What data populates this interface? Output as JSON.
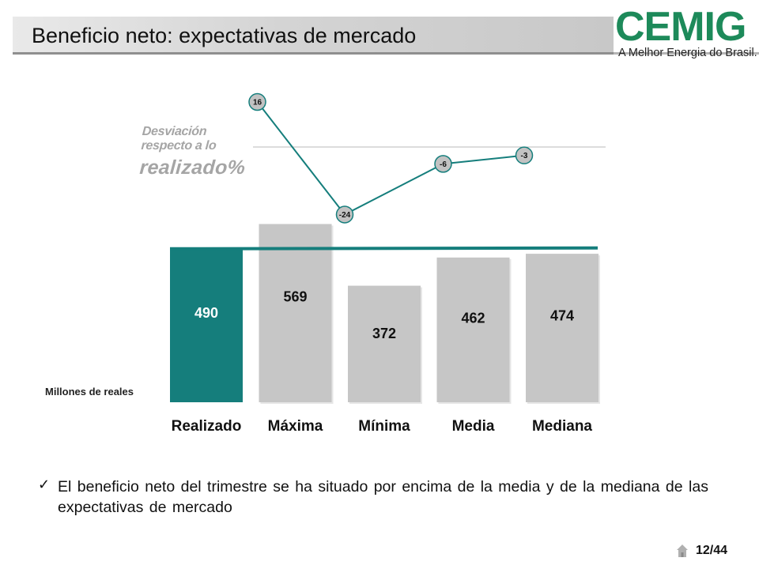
{
  "header": {
    "title": "Beneficio neto: expectativas de mercado",
    "logo_text": "CEMIG",
    "logo_tagline": "A Melhor Energia do Brasil."
  },
  "colors": {
    "accent_teal": "#157e7c",
    "bar_gray": "#c6c6c6",
    "label_gray": "#a5a5a5",
    "brand_green": "#1d8a5a"
  },
  "chart_data": {
    "type": "bar",
    "categories": [
      "Realizado",
      "Máxima",
      "Mínima",
      "Media",
      "Mediana"
    ],
    "values": [
      490,
      569,
      372,
      462,
      474
    ],
    "unit_label": "Millones de reales",
    "highlight_category": "Realizado",
    "reference_line_value": 490,
    "deviation": {
      "title_line1": "Desviación respecto a lo",
      "title_line2": "realizado%",
      "categories": [
        "Máxima",
        "Mínima",
        "Media",
        "Mediana"
      ],
      "values": [
        16,
        -24,
        -6,
        -3
      ],
      "baseline": 0
    }
  },
  "bullet": {
    "check_icon": "check-icon",
    "text": "El beneficio neto del trimestre se ha situado por encima de la media y de la mediana de las expectativas de mercado"
  },
  "footer": {
    "page": "12/44",
    "home_icon": "home-icon"
  }
}
